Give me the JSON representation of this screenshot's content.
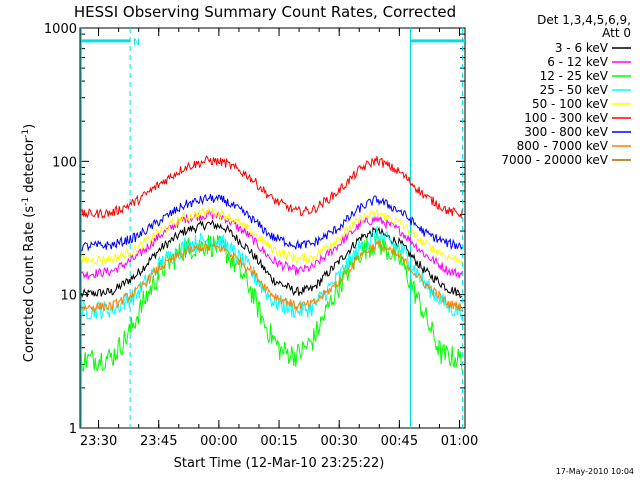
{
  "chart_data": {
    "type": "line",
    "title": "HESSI Observing Summary Count Rates, Corrected",
    "xlabel": "Start Time (12-Mar-10 23:25:22)",
    "ylabel": "Corrected Count Rate (s",
    "ylabel_sup1": "-1",
    "ylabel_mid": " detector",
    "ylabel_sup2": "-1",
    "ylabel_end": ")",
    "yscale": "log",
    "ylim": [
      1,
      1000
    ],
    "xlim_minutes_after_2325_22": [
      0,
      96
    ],
    "y_ticks": [
      {
        "value": 1,
        "label": "1"
      },
      {
        "value": 10,
        "label": "10"
      },
      {
        "value": 100,
        "label": "100"
      },
      {
        "value": 1000,
        "label": "1000"
      }
    ],
    "x_ticks": [
      {
        "label": "23:30",
        "minute": 4.633
      },
      {
        "label": "23:45",
        "minute": 19.633
      },
      {
        "label": "00:00",
        "minute": 34.633
      },
      {
        "label": "00:15",
        "minute": 49.633
      },
      {
        "label": "00:30",
        "minute": 64.633
      },
      {
        "label": "00:45",
        "minute": 79.633
      },
      {
        "label": "01:00",
        "minute": 94.633
      }
    ],
    "legend_header": [
      "Det 1,3,4,5,6,9,",
      "Att 0"
    ],
    "legend_placement": "top-right, outside plot",
    "series": [
      {
        "name": "3 - 6 keV",
        "color": "#000000",
        "x_minutes": [
          0,
          8,
          14,
          20,
          26,
          32,
          36,
          42,
          48,
          54,
          58,
          64,
          70,
          74,
          80,
          86,
          92,
          96
        ],
        "values": [
          10,
          10.5,
          14,
          22,
          30,
          34,
          32,
          22,
          13,
          10.5,
          11,
          17,
          27,
          30,
          24,
          15,
          11,
          10
        ]
      },
      {
        "name": "6 - 12 keV",
        "color": "#ff00ff",
        "x_minutes": [
          0,
          8,
          14,
          20,
          26,
          32,
          36,
          42,
          48,
          54,
          58,
          64,
          70,
          74,
          80,
          86,
          92,
          96
        ],
        "values": [
          14,
          15,
          19,
          28,
          37,
          40,
          38,
          28,
          18,
          15,
          16,
          23,
          34,
          37,
          30,
          20,
          15,
          14
        ]
      },
      {
        "name": "12 - 25 keV",
        "color": "#00ff00",
        "x_minutes": [
          0,
          8,
          12,
          16,
          20,
          26,
          32,
          36,
          42,
          46,
          50,
          54,
          58,
          64,
          70,
          74,
          80,
          86,
          90,
          96
        ],
        "values": [
          3.2,
          3.4,
          5,
          9,
          15,
          22,
          24,
          22,
          12,
          6,
          3.8,
          3.5,
          4.5,
          11,
          21,
          25,
          18,
          7,
          3.6,
          3.2
        ]
      },
      {
        "name": "25 - 50 keV",
        "color": "#00ffff",
        "x_minutes": [
          0,
          8,
          14,
          20,
          26,
          32,
          36,
          42,
          48,
          54,
          58,
          64,
          70,
          74,
          80,
          86,
          92,
          96
        ],
        "values": [
          7.5,
          7.8,
          10,
          17,
          23,
          26,
          24,
          16,
          9,
          7.6,
          8,
          13,
          23,
          28,
          22,
          12,
          8,
          7.5
        ]
      },
      {
        "name": "50 - 100 keV",
        "color": "#ffff00",
        "x_minutes": [
          0,
          8,
          14,
          20,
          26,
          32,
          36,
          42,
          48,
          54,
          58,
          64,
          70,
          74,
          80,
          86,
          92,
          96
        ],
        "values": [
          18,
          18.5,
          22,
          30,
          38,
          42,
          40,
          31,
          22,
          18.5,
          19,
          26,
          37,
          41,
          34,
          24,
          19,
          18
        ]
      },
      {
        "name": "100 - 300 keV",
        "color": "#ff0000",
        "x_minutes": [
          0,
          8,
          14,
          20,
          26,
          32,
          36,
          42,
          48,
          54,
          58,
          64,
          70,
          74,
          80,
          86,
          92,
          96
        ],
        "values": [
          40,
          41,
          50,
          68,
          90,
          102,
          98,
          78,
          52,
          42,
          43,
          58,
          88,
          103,
          82,
          55,
          42,
          40
        ]
      },
      {
        "name": "300 - 800 keV",
        "color": "#0000ff",
        "x_minutes": [
          0,
          8,
          14,
          20,
          26,
          32,
          36,
          42,
          48,
          54,
          58,
          64,
          70,
          74,
          80,
          86,
          92,
          96
        ],
        "values": [
          23,
          23.5,
          27,
          36,
          47,
          53,
          51,
          39,
          27,
          23.5,
          24,
          31,
          45,
          52,
          42,
          29,
          24,
          23
        ]
      },
      {
        "name": "800 - 7000 keV",
        "color": "#ff8000",
        "x_minutes": [
          0,
          8,
          14,
          20,
          26,
          32,
          36,
          42,
          48,
          54,
          58,
          64,
          70,
          74,
          80,
          86,
          92,
          96
        ],
        "values": [
          8,
          8.2,
          10.5,
          16,
          21,
          23,
          22,
          16,
          10,
          8.2,
          8.5,
          12,
          20,
          24,
          19,
          12,
          8.5,
          8
        ]
      },
      {
        "name": "7000 - 20000 keV",
        "color": "#aa6600",
        "x_minutes": [],
        "values": []
      }
    ],
    "annotations": {
      "night_markers": [
        {
          "label": "",
          "start_minute": 0.3,
          "end_minute": 12.5,
          "level": 800
        },
        {
          "label": "N",
          "start_minute": 12.5,
          "end_minute": 13.5,
          "level": 800
        },
        {
          "label": "",
          "start_minute": 82.4,
          "end_minute": 96,
          "level": 800
        }
      ],
      "solid_vlines_minutes": [
        0.3,
        82.4
      ],
      "dashed_vlines_minutes": [
        12.5,
        95.4
      ]
    }
  },
  "footer": {
    "date_stamp": "17-May-2010 10:04"
  }
}
